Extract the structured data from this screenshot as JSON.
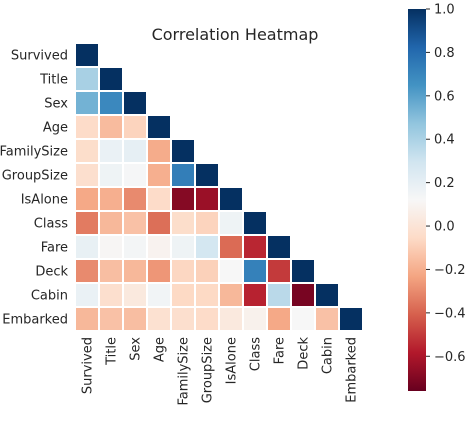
{
  "chart_data": {
    "type": "heatmap",
    "title": "Correlation Heatmap",
    "variables": [
      "Survived",
      "Title",
      "Sex",
      "Age",
      "FamilySize",
      "GroupSize",
      "IsAlone",
      "Class",
      "Fare",
      "Deck",
      "Cabin",
      "Embarked"
    ],
    "mask": "upper triangle hidden",
    "values": [
      [
        1.0
      ],
      [
        0.41,
        1.0
      ],
      [
        0.54,
        0.69,
        1.0
      ],
      [
        -0.05,
        -0.16,
        -0.08,
        1.0
      ],
      [
        -0.04,
        0.18,
        0.2,
        -0.21,
        1.0
      ],
      [
        -0.03,
        0.16,
        0.13,
        -0.2,
        0.73,
        1.0
      ],
      [
        -0.22,
        -0.2,
        -0.3,
        -0.05,
        -0.69,
        -0.64,
        1.0
      ],
      [
        -0.34,
        -0.17,
        -0.14,
        -0.37,
        -0.04,
        -0.08,
        0.16,
        1.0
      ],
      [
        0.19,
        0.11,
        0.14,
        0.09,
        0.16,
        0.28,
        -0.38,
        -0.55,
        1.0
      ],
      [
        -0.3,
        -0.15,
        -0.17,
        -0.27,
        -0.07,
        -0.09,
        0.12,
        0.72,
        -0.5,
        1.0
      ],
      [
        0.18,
        -0.03,
        0.03,
        0.15,
        -0.06,
        -0.06,
        -0.17,
        -0.56,
        0.36,
        -0.72,
        1.0
      ],
      [
        -0.17,
        -0.14,
        -0.15,
        -0.02,
        -0.03,
        -0.05,
        0.03,
        0.08,
        -0.22,
        0.12,
        -0.14,
        1.0
      ]
    ],
    "colormap": "RdBu",
    "vmin": -0.76,
    "vmax": 1.0,
    "colorbar_ticks": [
      "1.0",
      "0.8",
      "0.6",
      "0.4",
      "0.2",
      "0.0",
      "−0.2",
      "−0.4",
      "−0.6"
    ],
    "colorbar_tick_values": [
      1.0,
      0.8,
      0.6,
      0.4,
      0.2,
      0.0,
      -0.2,
      -0.4,
      -0.6
    ]
  }
}
